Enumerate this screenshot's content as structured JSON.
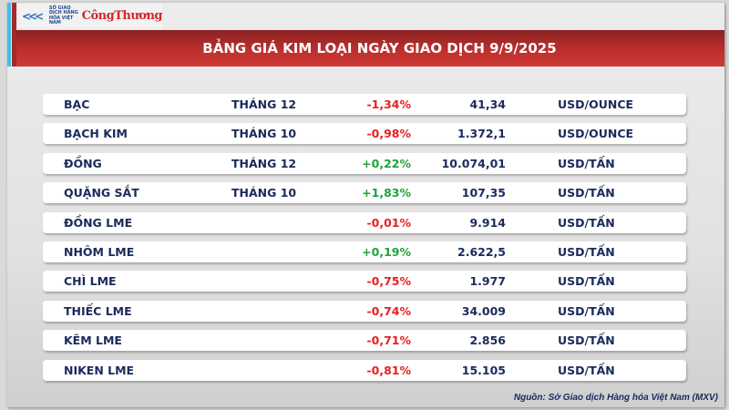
{
  "header": {
    "logo_sgd": "SỞ GIAO DỊCH HÀNG HÓA VIỆT NAM",
    "logo_ct": "CôngThương",
    "title": "BẢNG GIÁ KIM LOẠI NGÀY GIAO DỊCH 9/9/2025"
  },
  "colors": {
    "negative": "#e8201e",
    "positive": "#1fa33a",
    "banner": "#b42c2a",
    "text": "#1b2a5c"
  },
  "rows": [
    {
      "name": "BẠC",
      "month": "THÁNG 12",
      "change": "-1,34%",
      "price": "41,34",
      "unit": "USD/OUNCE"
    },
    {
      "name": "BẠCH KIM",
      "month": "THÁNG 10",
      "change": "-0,98%",
      "price": "1.372,1",
      "unit": "USD/OUNCE"
    },
    {
      "name": "ĐỒNG",
      "month": "THÁNG 12",
      "change": "+0,22%",
      "price": "10.074,01",
      "unit": "USD/TẤN"
    },
    {
      "name": "QUẶNG SẮT",
      "month": "THÁNG 10",
      "change": "+1,83%",
      "price": "107,35",
      "unit": "USD/TẤN"
    },
    {
      "name": "ĐỒNG LME",
      "month": "",
      "change": "-0,01%",
      "price": "9.914",
      "unit": "USD/TẤN"
    },
    {
      "name": "NHÔM LME",
      "month": "",
      "change": "+0,19%",
      "price": "2.622,5",
      "unit": "USD/TẤN"
    },
    {
      "name": "CHÌ LME",
      "month": "",
      "change": "-0,75%",
      "price": "1.977",
      "unit": "USD/TẤN"
    },
    {
      "name": "THIẾC LME",
      "month": "",
      "change": "-0,74%",
      "price": "34.009",
      "unit": "USD/TẤN"
    },
    {
      "name": "KẼM LME",
      "month": "",
      "change": "-0,71%",
      "price": "2.856",
      "unit": "USD/TẤN"
    },
    {
      "name": "NIKEN LME",
      "month": "",
      "change": "-0,81%",
      "price": "15.105",
      "unit": "USD/TẤN"
    }
  ],
  "footer": {
    "source": "Nguồn: Sở Giao dịch Hàng hóa Việt Nam (MXV)"
  }
}
